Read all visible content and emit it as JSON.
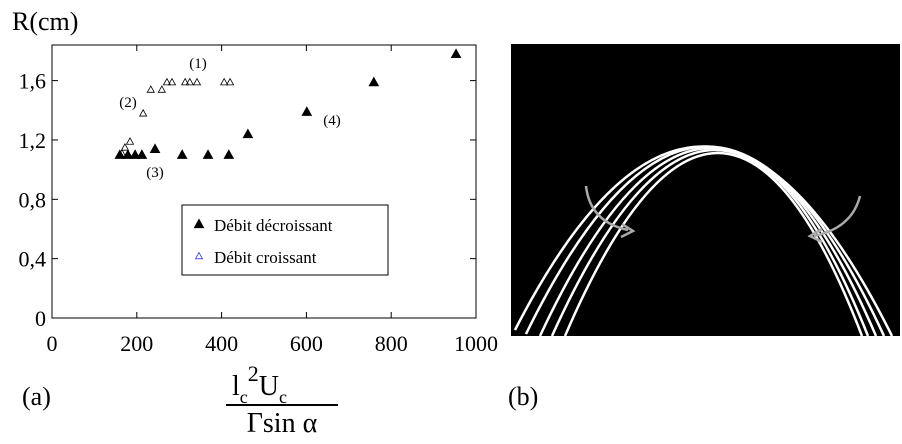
{
  "chart_data": {
    "type": "scatter",
    "y_label": "R(cm)",
    "x_label": {
      "numerator": [
        "l",
        "c",
        "2",
        "U",
        "c"
      ],
      "denominator": "Γsin α"
    },
    "panel_labels": [
      "(a)",
      "(b)"
    ],
    "xlim": [
      0,
      1000
    ],
    "xticks": [
      0,
      200,
      400,
      600,
      800,
      1000
    ],
    "ylim": [
      0,
      1.84
    ],
    "yticks": [
      0,
      {
        "value": 0.4,
        "label": "0,4"
      },
      {
        "value": 0.8,
        "label": "0,8"
      },
      {
        "value": 1.2,
        "label": "1,2"
      },
      {
        "value": 1.6,
        "label": "1,6"
      }
    ],
    "annotations": [
      "(1)",
      "(2)",
      "(3)",
      "(4)"
    ],
    "series": [
      {
        "name": "Débit décroissant",
        "color": "#000000",
        "marker": "filled-triangle",
        "x": [
          160,
          179,
          196,
          212,
          243,
          307,
          368,
          417,
          462,
          601,
          759,
          953
        ],
        "values": [
          1.1,
          1.1,
          1.1,
          1.1,
          1.14,
          1.1,
          1.1,
          1.1,
          1.24,
          1.39,
          1.59,
          1.78
        ]
      },
      {
        "name": "Débit croissant",
        "color": "#000000",
        "marker": "open-triangle",
        "x": [
          165,
          172,
          184,
          215,
          233,
          259,
          271,
          283,
          314,
          325,
          342,
          406,
          420
        ],
        "values": [
          1.11,
          1.15,
          1.19,
          1.38,
          1.54,
          1.54,
          1.59,
          1.59,
          1.59,
          1.59,
          1.59,
          1.59,
          1.59
        ]
      }
    ]
  }
}
